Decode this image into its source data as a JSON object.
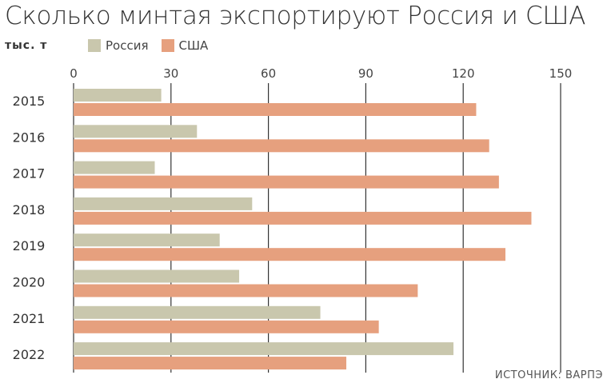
{
  "title": "Сколько минтая экспортируют Россия и США",
  "unit_label": "тыс. т",
  "source": "ИСТОЧНИК: ВАРПЭ",
  "colors": {
    "russia": "#c9c7ad",
    "usa": "#e6a07e",
    "grid": "#333333"
  },
  "chart_data": {
    "type": "bar",
    "orientation": "horizontal",
    "categories": [
      "2015",
      "2016",
      "2017",
      "2018",
      "2019",
      "2020",
      "2021",
      "2022"
    ],
    "series": [
      {
        "name": "Россия",
        "values": [
          27,
          38,
          25,
          55,
          45,
          51,
          76,
          117
        ]
      },
      {
        "name": "США",
        "values": [
          124,
          128,
          131,
          141,
          133,
          106,
          94,
          84
        ]
      }
    ],
    "xlim": [
      0,
      150
    ],
    "xticks": [
      "0",
      "30",
      "60",
      "90",
      "120",
      "150"
    ],
    "grid": true,
    "legend": "top-left"
  }
}
